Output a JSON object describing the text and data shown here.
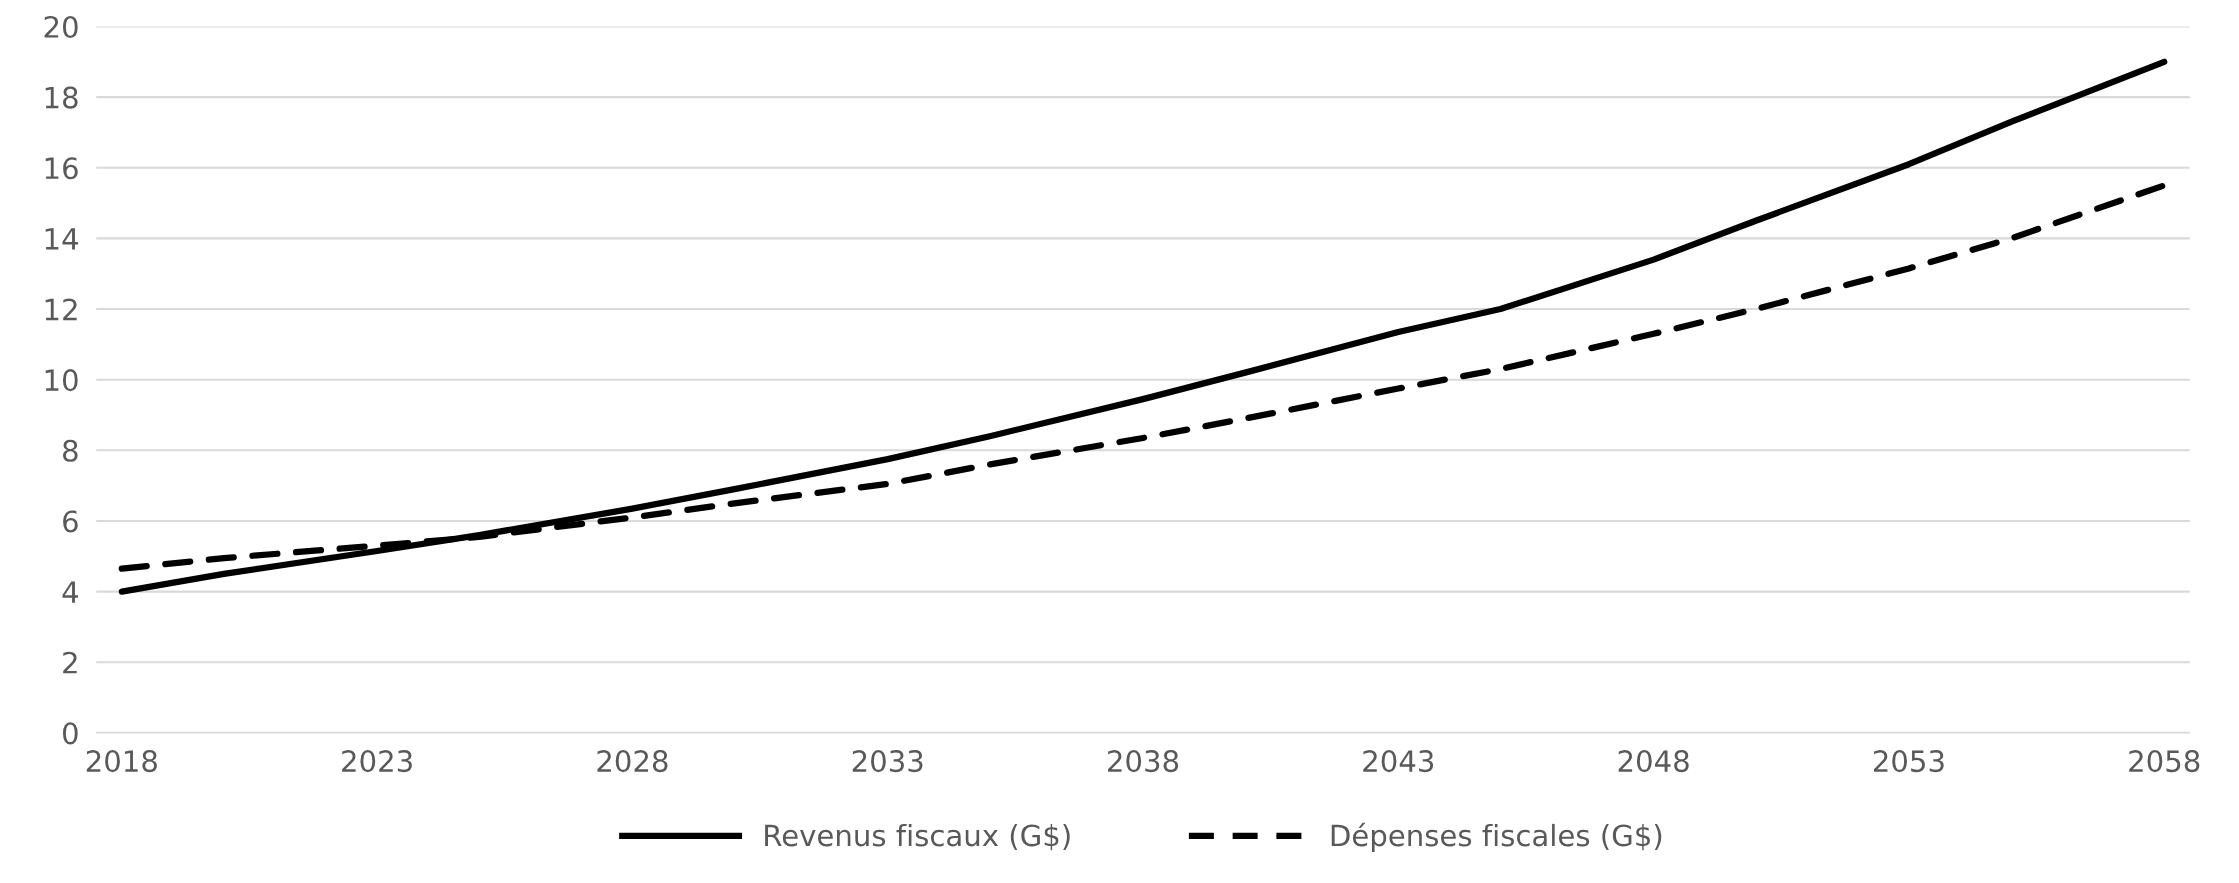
{
  "chart_data": {
    "type": "line",
    "x": [
      2018,
      2020,
      2023,
      2025,
      2028,
      2030,
      2033,
      2035,
      2038,
      2040,
      2043,
      2045,
      2048,
      2050,
      2053,
      2055,
      2058
    ],
    "series": [
      {
        "name": "Revenus fiscaux (G$)",
        "color": "#000000",
        "line_style": "solid",
        "values": [
          4.0,
          4.5,
          5.15,
          5.6,
          6.35,
          6.9,
          7.75,
          8.4,
          9.45,
          10.2,
          11.35,
          12.0,
          13.4,
          14.5,
          16.1,
          17.3,
          19.0
        ]
      },
      {
        "name": "Dépenses fiscales (G$)",
        "color": "#000000",
        "line_style": "dashed",
        "values": [
          4.65,
          4.95,
          5.3,
          5.55,
          6.1,
          6.5,
          7.05,
          7.6,
          8.35,
          8.9,
          9.75,
          10.3,
          11.3,
          12.0,
          13.15,
          14.0,
          15.5
        ]
      }
    ],
    "xlim": [
      2017.5,
      2058.5
    ],
    "xticks": [
      2018,
      2023,
      2028,
      2033,
      2038,
      2043,
      2048,
      2053,
      2058
    ],
    "ylim": [
      0,
      20
    ],
    "yticks": [
      0,
      2,
      4,
      6,
      8,
      10,
      12,
      14,
      16,
      18,
      20
    ],
    "grid": "y",
    "legend": "bottom",
    "marker": "none"
  }
}
